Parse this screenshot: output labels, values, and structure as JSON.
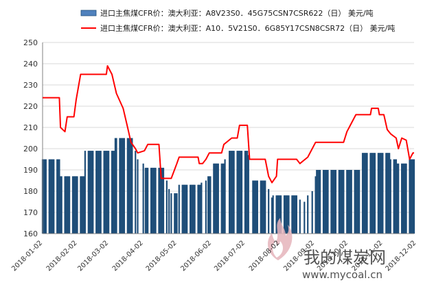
{
  "chart_data": {
    "type": "bar+line",
    "title": "",
    "xlabel": "",
    "ylabel": "",
    "ylim": [
      160,
      250
    ],
    "yticks": [
      160,
      170,
      180,
      190,
      200,
      210,
      220,
      230,
      240,
      250
    ],
    "x_start": "2018-01-02",
    "x_end": "2018-11-30",
    "xticks": [
      "2018-01-02",
      "2018-02-02",
      "2018-03-02",
      "2018-04-02",
      "2018-05-02",
      "2018-06-02",
      "2018-07-02",
      "2018-08-02",
      "2018-09-02",
      "2018-10-02",
      "2018-11-02",
      "2018-12-02"
    ],
    "grid": "horizontal",
    "legend": "top",
    "series": [
      {
        "name": "进口主焦煤CFR价：澳大利亚：A8V23S0．45G75CSN7CSR622（日） 美元/吨",
        "kind": "bar",
        "color": "#1f4e79",
        "legend_fill": "#4f81bd",
        "points": [
          [
            "2018-01-02",
            195
          ],
          [
            "2018-01-17",
            195
          ],
          [
            "2018-01-18",
            187
          ],
          [
            "2018-02-08",
            187
          ],
          [
            "2018-02-09",
            199
          ],
          [
            "2018-02-14",
            199
          ],
          [
            "2018-02-20",
            199
          ],
          [
            "2018-03-07",
            199
          ],
          [
            "2018-03-08",
            205
          ],
          [
            "2018-03-23",
            205
          ],
          [
            "2018-03-26",
            199
          ],
          [
            "2018-03-28",
            195
          ],
          [
            "2018-04-02",
            193
          ],
          [
            "2018-04-04",
            191
          ],
          [
            "2018-04-20",
            191
          ],
          [
            "2018-04-23",
            185
          ],
          [
            "2018-04-25",
            181
          ],
          [
            "2018-04-27",
            179
          ],
          [
            "2018-05-02",
            179
          ],
          [
            "2018-05-04",
            183
          ],
          [
            "2018-05-23",
            183
          ],
          [
            "2018-05-24",
            184
          ],
          [
            "2018-05-28",
            185
          ],
          [
            "2018-05-30",
            187
          ],
          [
            "2018-06-01",
            187
          ],
          [
            "2018-06-04",
            193
          ],
          [
            "2018-06-13",
            193
          ],
          [
            "2018-06-14",
            195
          ],
          [
            "2018-06-18",
            199
          ],
          [
            "2018-07-04",
            199
          ],
          [
            "2018-07-05",
            197
          ],
          [
            "2018-07-09",
            185
          ],
          [
            "2018-07-20",
            185
          ],
          [
            "2018-07-23",
            181
          ],
          [
            "2018-07-26",
            177
          ],
          [
            "2018-07-27",
            178
          ],
          [
            "2018-08-17",
            178
          ],
          [
            "2018-08-20",
            176
          ],
          [
            "2018-08-24",
            175
          ],
          [
            "2018-08-27",
            178
          ],
          [
            "2018-08-31",
            180
          ],
          [
            "2018-09-03",
            187
          ],
          [
            "2018-09-04",
            190
          ],
          [
            "2018-09-17",
            190
          ],
          [
            "2018-09-25",
            190
          ],
          [
            "2018-10-08",
            190
          ],
          [
            "2018-10-12",
            190
          ],
          [
            "2018-10-15",
            198
          ],
          [
            "2018-11-08",
            198
          ],
          [
            "2018-11-09",
            195
          ],
          [
            "2018-11-14",
            195
          ],
          [
            "2018-11-15",
            193
          ],
          [
            "2018-11-23",
            193
          ],
          [
            "2018-11-26",
            195
          ],
          [
            "2018-11-30",
            195
          ]
        ]
      },
      {
        "name": "进口主焦煤CFR价：澳大利亚：A10．5V21S0．6G85Y17CSN8CSR72（日） 美元/吨",
        "kind": "line",
        "color": "#ff0000",
        "points": [
          [
            "2018-01-02",
            224
          ],
          [
            "2018-01-17",
            224
          ],
          [
            "2018-01-18",
            210
          ],
          [
            "2018-01-22",
            208
          ],
          [
            "2018-01-24",
            215
          ],
          [
            "2018-01-30",
            215
          ],
          [
            "2018-02-01",
            223
          ],
          [
            "2018-02-05",
            235
          ],
          [
            "2018-02-28",
            235
          ],
          [
            "2018-03-01",
            239
          ],
          [
            "2018-03-05",
            235
          ],
          [
            "2018-03-09",
            226
          ],
          [
            "2018-03-15",
            219
          ],
          [
            "2018-03-19",
            210
          ],
          [
            "2018-03-22",
            203
          ],
          [
            "2018-03-26",
            200
          ],
          [
            "2018-03-28",
            198
          ],
          [
            "2018-04-03",
            199
          ],
          [
            "2018-04-06",
            202
          ],
          [
            "2018-04-16",
            202
          ],
          [
            "2018-04-18",
            186
          ],
          [
            "2018-04-27",
            186
          ],
          [
            "2018-05-02",
            193
          ],
          [
            "2018-05-04",
            196
          ],
          [
            "2018-05-21",
            196
          ],
          [
            "2018-05-22",
            193
          ],
          [
            "2018-05-25",
            193
          ],
          [
            "2018-05-28",
            195
          ],
          [
            "2018-05-31",
            198
          ],
          [
            "2018-06-11",
            198
          ],
          [
            "2018-06-13",
            202
          ],
          [
            "2018-06-20",
            205
          ],
          [
            "2018-06-25",
            205
          ],
          [
            "2018-06-27",
            211
          ],
          [
            "2018-07-04",
            211
          ],
          [
            "2018-07-06",
            195
          ],
          [
            "2018-07-20",
            195
          ],
          [
            "2018-07-23",
            187
          ],
          [
            "2018-07-26",
            184
          ],
          [
            "2018-07-30",
            187
          ],
          [
            "2018-07-31",
            195
          ],
          [
            "2018-08-17",
            195
          ],
          [
            "2018-08-20",
            193
          ],
          [
            "2018-08-27",
            196
          ],
          [
            "2018-09-03",
            203
          ],
          [
            "2018-09-28",
            203
          ],
          [
            "2018-10-01",
            208
          ],
          [
            "2018-10-09",
            216
          ],
          [
            "2018-10-22",
            216
          ],
          [
            "2018-10-23",
            219
          ],
          [
            "2018-10-29",
            219
          ],
          [
            "2018-10-30",
            216
          ],
          [
            "2018-11-03",
            216
          ],
          [
            "2018-11-06",
            209
          ],
          [
            "2018-11-09",
            207
          ],
          [
            "2018-11-14",
            205
          ],
          [
            "2018-11-16",
            200
          ],
          [
            "2018-11-19",
            205
          ],
          [
            "2018-11-23",
            204
          ],
          [
            "2018-11-26",
            195
          ],
          [
            "2018-11-29",
            198
          ],
          [
            "2018-11-30",
            198
          ]
        ]
      }
    ]
  },
  "watermark": {
    "brand": "我的煤炭网",
    "url": "www.mycoal.cn"
  }
}
